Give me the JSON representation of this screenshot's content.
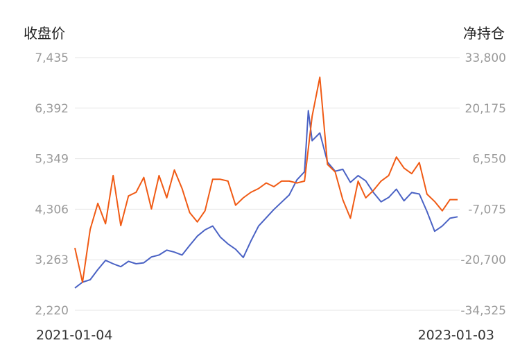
{
  "chart_data": {
    "type": "line",
    "title": "",
    "left_axis": {
      "label": "收盘价",
      "ylim": [
        2220,
        7435
      ],
      "ticks": [
        "7,435",
        "6,392",
        "5,349",
        "4,306",
        "3,263",
        "2,220"
      ],
      "tick_values": [
        7435,
        6392,
        5349,
        4306,
        3263,
        2220
      ]
    },
    "right_axis": {
      "label": "净持仓",
      "ylim": [
        -34325,
        33800
      ],
      "ticks": [
        "33,800",
        "20,175",
        "6,550",
        "-7,075",
        "-20,700",
        "-34,325"
      ],
      "tick_values": [
        33800,
        20175,
        6550,
        -7075,
        -20700,
        -34325
      ]
    },
    "x_range_labels": [
      "2021-01-04",
      "2023-01-03"
    ],
    "grid": true,
    "series": [
      {
        "axis": "left",
        "color": "#4a62c4",
        "x": [
          0,
          0.02,
          0.04,
          0.06,
          0.08,
          0.1,
          0.12,
          0.14,
          0.16,
          0.18,
          0.2,
          0.22,
          0.24,
          0.26,
          0.28,
          0.3,
          0.32,
          0.34,
          0.36,
          0.38,
          0.4,
          0.42,
          0.44,
          0.46,
          0.48,
          0.5,
          0.52,
          0.54,
          0.56,
          0.58,
          0.6,
          0.61,
          0.62,
          0.64,
          0.66,
          0.68,
          0.7,
          0.72,
          0.74,
          0.76,
          0.78,
          0.8,
          0.82,
          0.84,
          0.86,
          0.88,
          0.9,
          0.92,
          0.94,
          0.96,
          0.98,
          1.0
        ],
        "values": [
          2680,
          2800,
          2850,
          3060,
          3250,
          3180,
          3120,
          3230,
          3180,
          3200,
          3320,
          3360,
          3460,
          3420,
          3360,
          3560,
          3750,
          3880,
          3960,
          3730,
          3590,
          3480,
          3310,
          3650,
          3960,
          4130,
          4300,
          4450,
          4600,
          4910,
          5080,
          6340,
          5720,
          5880,
          5280,
          5090,
          5130,
          4860,
          5000,
          4890,
          4650,
          4460,
          4550,
          4720,
          4480,
          4650,
          4620,
          4260,
          3850,
          3960,
          4120,
          4150
        ]
      },
      {
        "axis": "right",
        "color": "#f05a14",
        "x": [
          0,
          0.02,
          0.04,
          0.06,
          0.08,
          0.1,
          0.12,
          0.14,
          0.16,
          0.18,
          0.2,
          0.22,
          0.24,
          0.26,
          0.28,
          0.3,
          0.32,
          0.34,
          0.36,
          0.38,
          0.4,
          0.42,
          0.44,
          0.46,
          0.48,
          0.5,
          0.52,
          0.54,
          0.56,
          0.58,
          0.6,
          0.62,
          0.64,
          0.66,
          0.68,
          0.7,
          0.72,
          0.74,
          0.76,
          0.78,
          0.8,
          0.82,
          0.84,
          0.86,
          0.88,
          0.9,
          0.92,
          0.94,
          0.96,
          0.98,
          1.0
        ],
        "values": [
          -17500,
          -26800,
          -12500,
          -5500,
          -11000,
          2000,
          -11500,
          -3500,
          -2500,
          1500,
          -7000,
          2000,
          -4000,
          3500,
          -1500,
          -8000,
          -10500,
          -7500,
          1000,
          1000,
          500,
          -6000,
          -4000,
          -2500,
          -1500,
          0,
          -1000,
          500,
          500,
          0,
          500,
          18000,
          28500,
          5000,
          3000,
          -4500,
          -9500,
          500,
          -4000,
          -2000,
          500,
          2000,
          7000,
          4000,
          2500,
          5500,
          -3000,
          -5000,
          -7500,
          -4500,
          -4500
        ]
      }
    ]
  }
}
